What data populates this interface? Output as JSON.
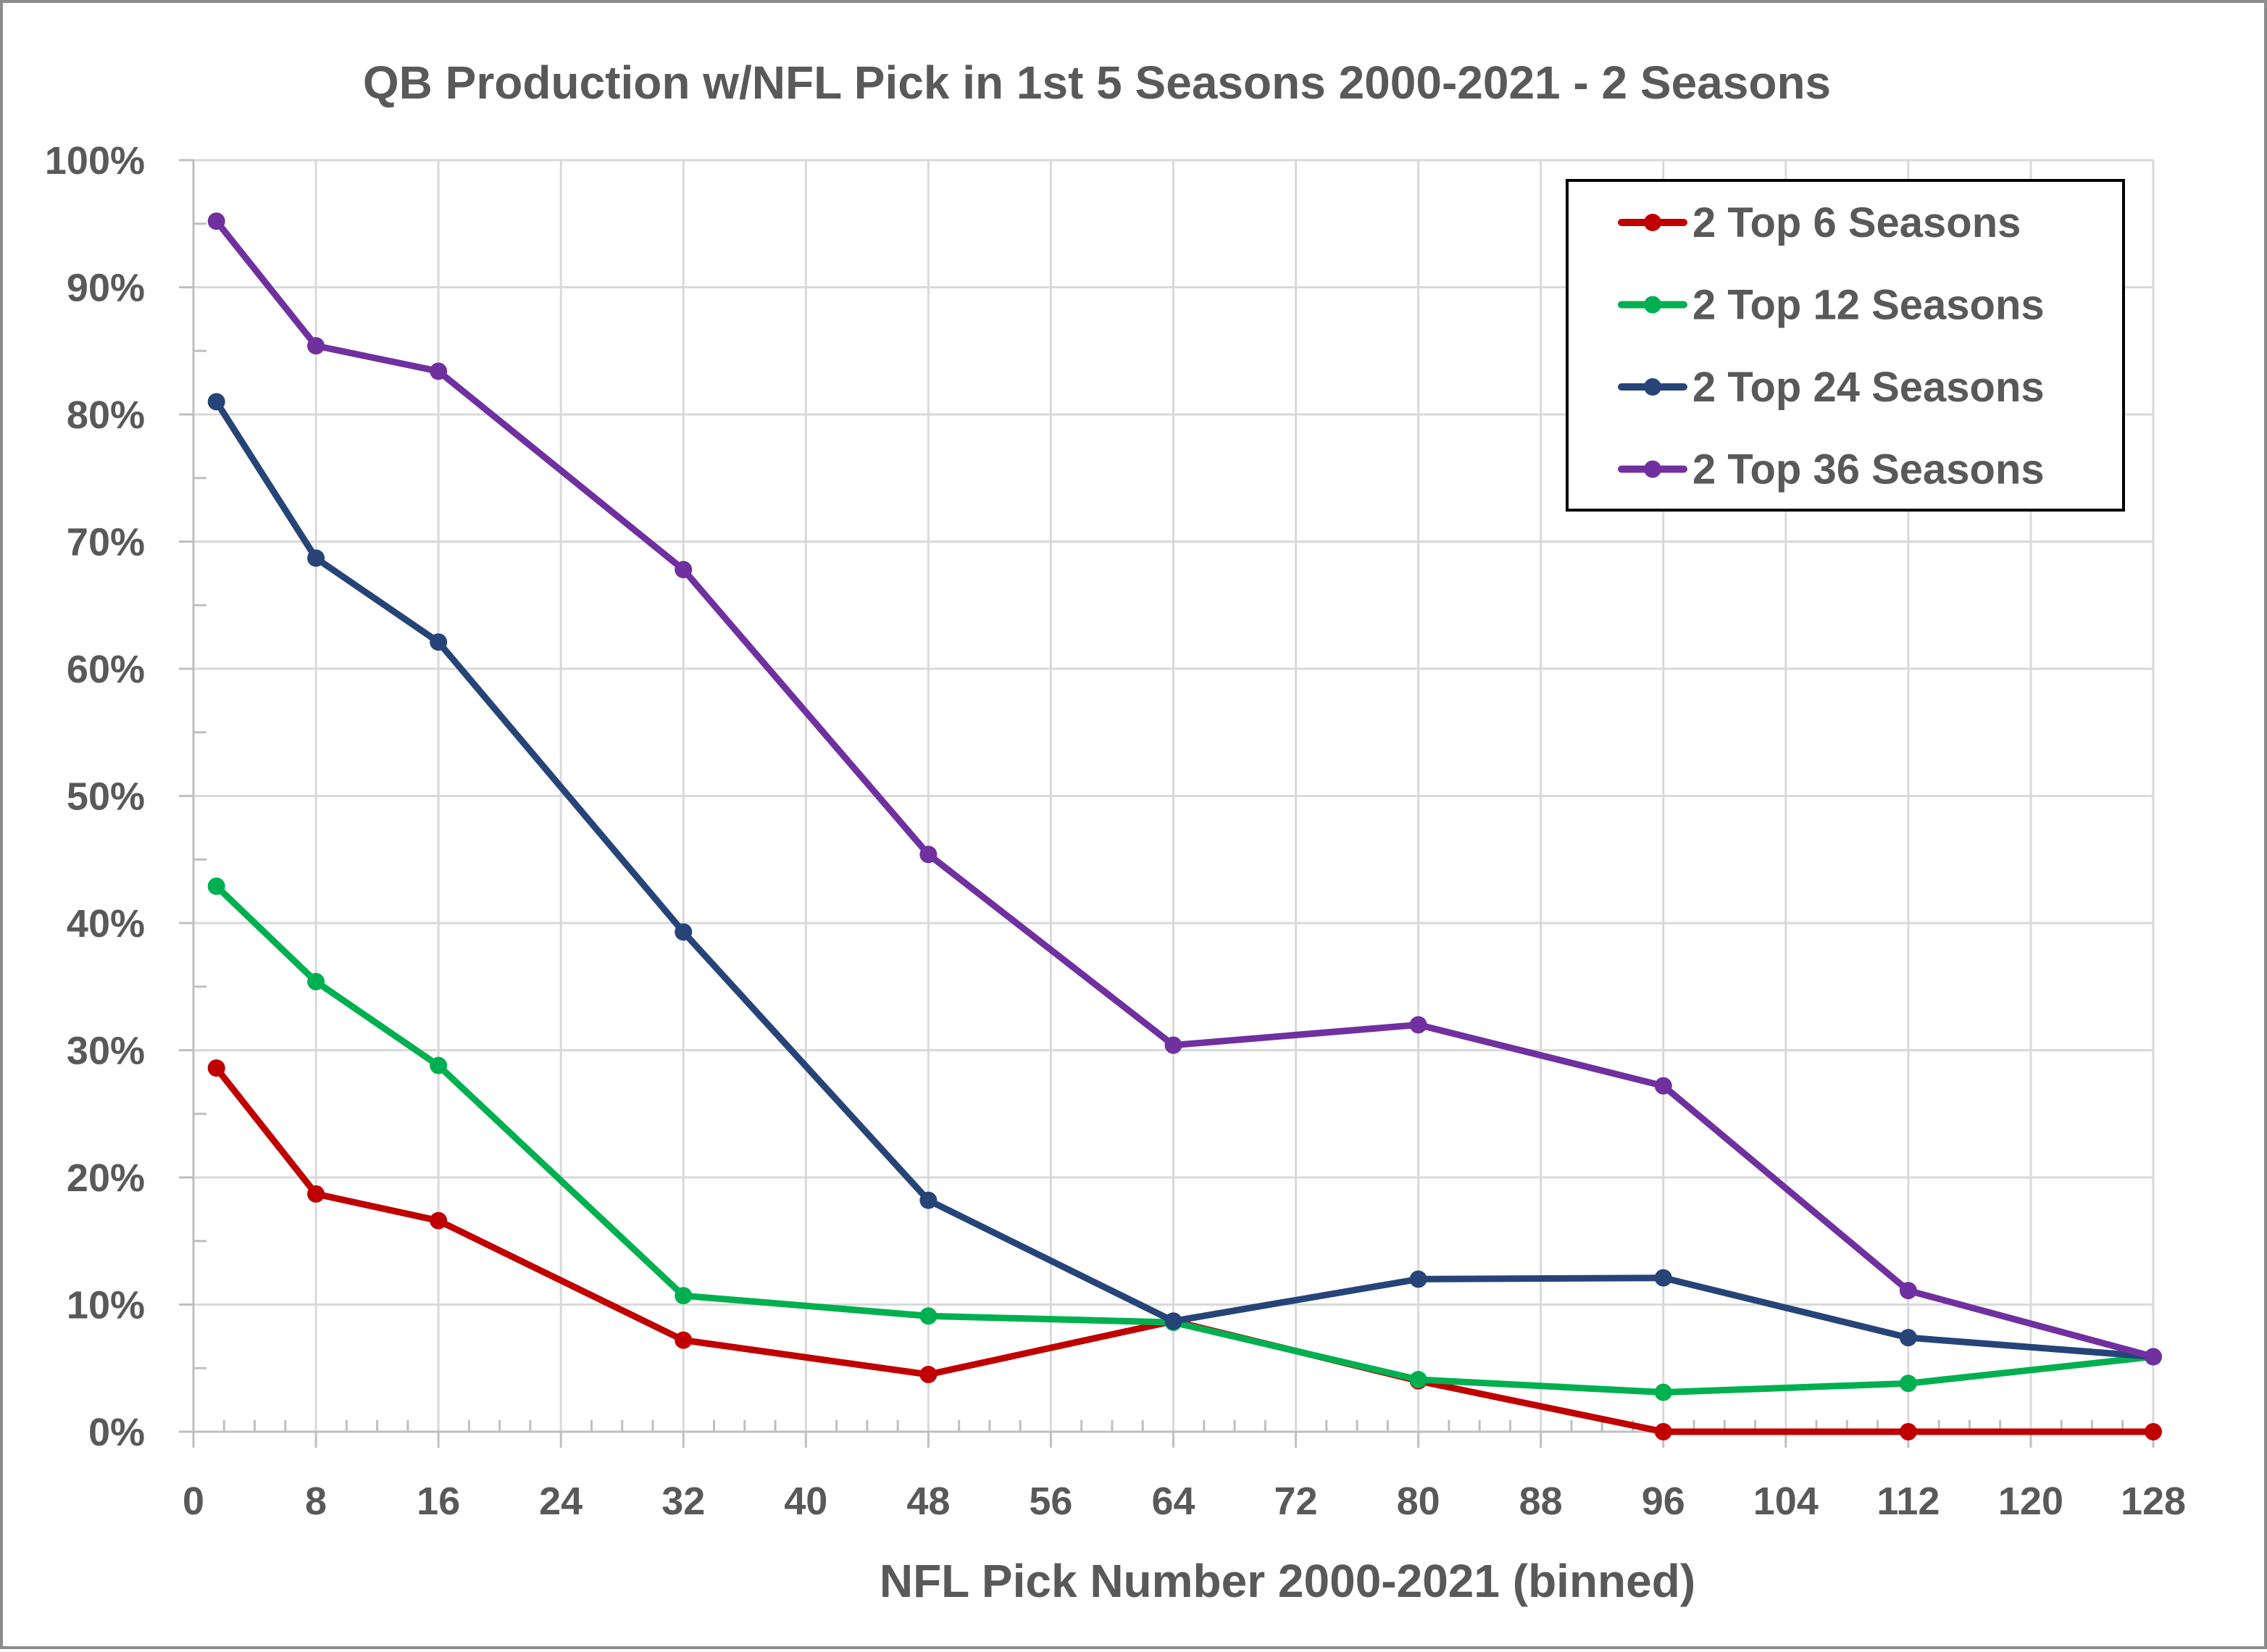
{
  "chart_data": {
    "type": "line",
    "title": "QB Production w/NFL Pick in 1st 5 Seasons 2000-2021 - 2 Seasons",
    "xlabel": "NFL Pick Number 2000-2021 (binned)",
    "ylabel": "",
    "xlim": [
      0,
      128
    ],
    "ylim": [
      0,
      100
    ],
    "x_ticks": [
      0,
      8,
      16,
      24,
      32,
      40,
      48,
      56,
      64,
      72,
      80,
      88,
      96,
      104,
      112,
      120,
      128
    ],
    "x_tick_labels": [
      "0",
      "8",
      "16",
      "24",
      "32",
      "40",
      "48",
      "56",
      "64",
      "72",
      "80",
      "88",
      "96",
      "104",
      "112",
      "120",
      "128"
    ],
    "x_minor_step": 2,
    "y_ticks": [
      0,
      10,
      20,
      30,
      40,
      50,
      60,
      70,
      80,
      90,
      100
    ],
    "y_tick_labels": [
      "0%",
      "10%",
      "20%",
      "30%",
      "40%",
      "50%",
      "60%",
      "70%",
      "80%",
      "90%",
      "100%"
    ],
    "y_minor_step": 5,
    "grid": true,
    "legend_position": "top-right",
    "x": [
      1.5,
      8,
      16,
      32,
      48,
      64,
      80,
      96,
      112,
      128
    ],
    "series": [
      {
        "name": "2 Top 6 Seasons",
        "color": "#c00000",
        "values": [
          28.6,
          18.7,
          16.6,
          7.2,
          4.5,
          8.7,
          4.0,
          0.0,
          0.0,
          0.0
        ]
      },
      {
        "name": "2 Top 12 Seasons",
        "color": "#00b050",
        "values": [
          42.9,
          35.4,
          28.8,
          10.7,
          9.1,
          8.6,
          4.1,
          3.1,
          3.8,
          5.9
        ]
      },
      {
        "name": "2 Top 24 Seasons",
        "color": "#264478",
        "values": [
          81.0,
          68.7,
          62.1,
          39.3,
          18.2,
          8.7,
          12.0,
          12.1,
          7.4,
          5.9
        ]
      },
      {
        "name": "2 Top 36 Seasons",
        "color": "#7030a0",
        "values": [
          95.2,
          85.4,
          83.4,
          67.8,
          45.4,
          30.4,
          32.0,
          27.2,
          11.1,
          5.9
        ]
      }
    ]
  }
}
